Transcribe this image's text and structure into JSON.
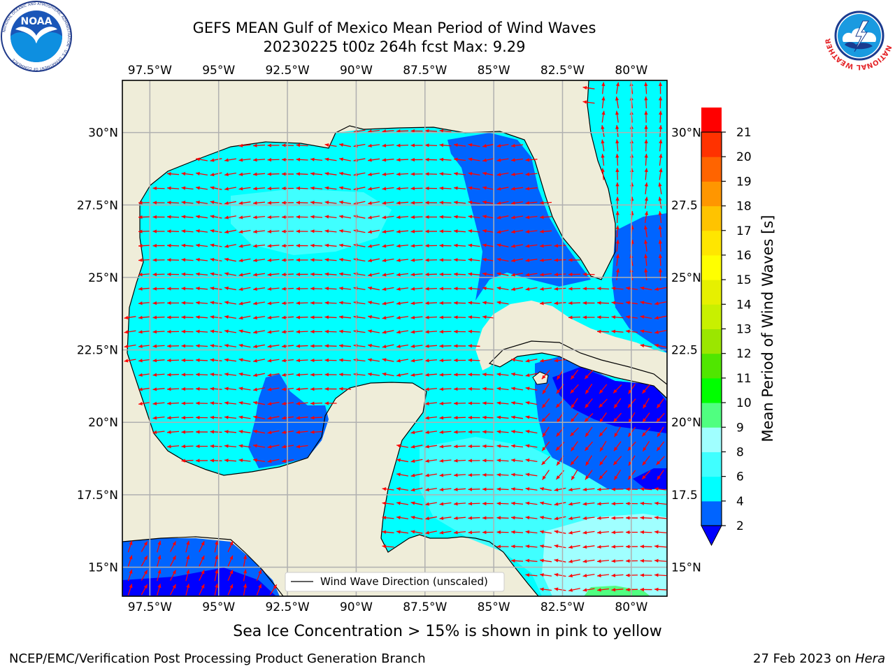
{
  "title_line1": "GEFS MEAN Gulf of Mexico Mean Period of Wind Waves",
  "title_line2": "20230225 t00z 264h fcst   Max: 9.29",
  "footnote": "Sea Ice Concentration > 15% is shown in pink to yellow",
  "credit_left": "NCEP/EMC/Verification Post Processing Product Generation Branch",
  "credit_right_date": "27 Feb 2023 on",
  "credit_right_machine": "Hera",
  "logos": {
    "noaa": {
      "text": "NOAA",
      "ring_text": "NATIONAL OCEANIC AND ATMOSPHERIC ADMINISTRATION · U.S. DEPARTMENT OF COMMERCE"
    },
    "nws": {
      "ring_text": "NATIONAL WEATHER SERVICE"
    }
  },
  "map": {
    "lon_range": [
      -98.5,
      -78.7
    ],
    "lat_range": [
      14.0,
      31.8
    ],
    "lon_ticks": [
      -97.5,
      -95,
      -92.5,
      -90,
      -87.5,
      -85,
      -82.5,
      -80
    ],
    "lon_tick_labels": [
      "97.5°W",
      "95°W",
      "92.5°W",
      "90°W",
      "87.5°W",
      "85°W",
      "82.5°W",
      "80°W"
    ],
    "lat_ticks": [
      15,
      17.5,
      20,
      22.5,
      25,
      27.5,
      30
    ],
    "lat_tick_labels_left": [
      "15°N",
      "17.5°N",
      "20°N",
      "22.5°N",
      "25°N",
      "27.5°N",
      "30°N"
    ],
    "lat_tick_labels_right": [
      "15°N",
      "17.5",
      "20°N",
      "22.5",
      "25°N",
      "27.5",
      "30°N"
    ],
    "land_color": "#efedd9",
    "grid": true,
    "arrow_color": "#ff0000",
    "legend_label": "Wind Wave Direction (unscaled)",
    "legend_placement": "bottom-center"
  },
  "colorbar": {
    "label": "Mean Period of Wind Waves [s]",
    "ticks": [
      2,
      4,
      6,
      8,
      9,
      10,
      11,
      12,
      13,
      14,
      15,
      16,
      17,
      18,
      19,
      20,
      21
    ],
    "colors": [
      "#0064ff",
      "#00ffff",
      "#40ffff",
      "#a0ffff",
      "#50ff80",
      "#00ff00",
      "#50e600",
      "#9be600",
      "#c8f000",
      "#e6f000",
      "#ffff00",
      "#ffe600",
      "#ffc300",
      "#ff9600",
      "#ff6400",
      "#ff3200",
      "#ff0000"
    ],
    "under_color": "#0000ff"
  }
}
